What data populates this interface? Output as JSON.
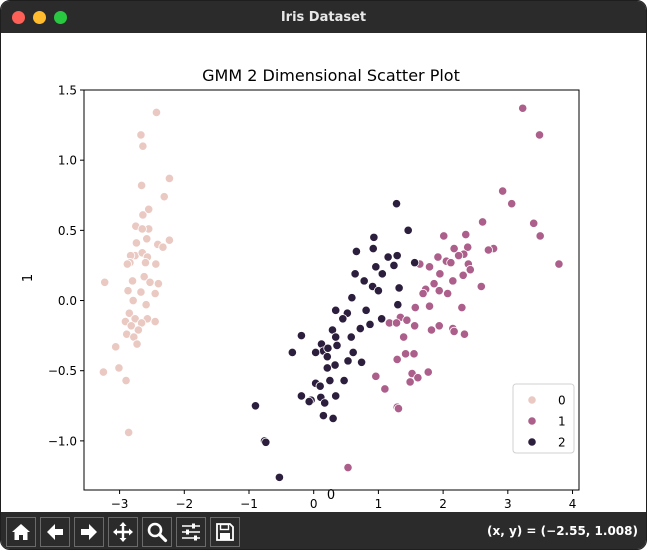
{
  "window": {
    "title": "Iris Dataset"
  },
  "toolbar": {
    "buttons": [
      {
        "name": "home-button",
        "icon": "home-icon",
        "tooltip": "Home"
      },
      {
        "name": "back-button",
        "icon": "arrow-left-icon",
        "tooltip": "Back"
      },
      {
        "name": "forward-button",
        "icon": "arrow-right-icon",
        "tooltip": "Forward"
      },
      {
        "name": "pan-button",
        "icon": "move-icon",
        "tooltip": "Pan"
      },
      {
        "name": "zoom-button",
        "icon": "magnifier-icon",
        "tooltip": "Zoom"
      },
      {
        "name": "configure-subplots-button",
        "icon": "sliders-icon",
        "tooltip": "Configure subplots"
      },
      {
        "name": "save-button",
        "icon": "floppy-disk-icon",
        "tooltip": "Save"
      }
    ],
    "coords": "(x, y) = (−2.55, 1.008)"
  },
  "chart_data": {
    "type": "scatter",
    "title": "GMM 2 Dimensional Scatter Plot",
    "xlabel": "0",
    "ylabel": "1",
    "xlim": [
      -3.55,
      4.1
    ],
    "ylim": [
      -1.35,
      1.5
    ],
    "xticks": [
      -3,
      -2,
      -1,
      0,
      1,
      2,
      3,
      4
    ],
    "yticks": [
      -1.0,
      -0.5,
      0.0,
      0.5,
      1.0,
      1.5
    ],
    "xtick_labels": [
      "−3",
      "−2",
      "−1",
      "0",
      "1",
      "2",
      "3",
      "4"
    ],
    "ytick_labels": [
      "−1.0",
      "−0.5",
      "0.0",
      "0.5",
      "1.0",
      "1.5"
    ],
    "grid": false,
    "legend": {
      "placement": "bottom-right",
      "entries": [
        "0",
        "1",
        "2"
      ]
    },
    "series": [
      {
        "name": "0",
        "color": "#ebc9c3",
        "points": [
          [
            -2.43,
            1.34
          ],
          [
            -2.67,
            1.18
          ],
          [
            -2.64,
            1.1
          ],
          [
            -2.23,
            0.87
          ],
          [
            -2.66,
            0.82
          ],
          [
            -2.31,
            0.74
          ],
          [
            -2.64,
            0.61
          ],
          [
            -2.55,
            0.65
          ],
          [
            -2.75,
            0.53
          ],
          [
            -2.55,
            0.51
          ],
          [
            -2.65,
            0.51
          ],
          [
            -2.58,
            0.44
          ],
          [
            -2.74,
            0.41
          ],
          [
            -2.23,
            0.43
          ],
          [
            -2.41,
            0.4
          ],
          [
            -2.33,
            0.38
          ],
          [
            -2.76,
            0.32
          ],
          [
            -2.83,
            0.32
          ],
          [
            -2.65,
            0.34
          ],
          [
            -2.57,
            0.31
          ],
          [
            -2.84,
            0.27
          ],
          [
            -2.88,
            0.26
          ],
          [
            -2.6,
            0.27
          ],
          [
            -2.44,
            0.26
          ],
          [
            -3.23,
            0.13
          ],
          [
            -2.62,
            0.17
          ],
          [
            -2.8,
            0.14
          ],
          [
            -2.53,
            0.13
          ],
          [
            -2.4,
            0.12
          ],
          [
            -2.87,
            0.07
          ],
          [
            -2.67,
            0.06
          ],
          [
            -2.45,
            0.05
          ],
          [
            -2.59,
            -0.03
          ],
          [
            -2.79,
            0.0
          ],
          [
            -2.85,
            -0.09
          ],
          [
            -2.76,
            -0.13
          ],
          [
            -2.57,
            -0.13
          ],
          [
            -2.45,
            -0.15
          ],
          [
            -2.91,
            -0.15
          ],
          [
            -2.66,
            -0.16
          ],
          [
            -2.82,
            -0.18
          ],
          [
            -2.71,
            -0.21
          ],
          [
            -2.89,
            -0.24
          ],
          [
            -2.78,
            -0.26
          ],
          [
            -2.73,
            -0.31
          ],
          [
            -3.06,
            -0.33
          ],
          [
            -3.01,
            -0.48
          ],
          [
            -3.25,
            -0.51
          ],
          [
            -2.9,
            -0.57
          ],
          [
            -2.86,
            -0.94
          ]
        ]
      },
      {
        "name": "1",
        "color": "#ad5f8b",
        "points": [
          [
            3.23,
            1.37
          ],
          [
            3.49,
            1.18
          ],
          [
            2.92,
            0.78
          ],
          [
            3.06,
            0.69
          ],
          [
            2.35,
            0.47
          ],
          [
            2.61,
            0.56
          ],
          [
            3.4,
            0.55
          ],
          [
            3.5,
            0.46
          ],
          [
            2.01,
            0.46
          ],
          [
            2.38,
            0.38
          ],
          [
            2.17,
            0.37
          ],
          [
            2.78,
            0.37
          ],
          [
            2.7,
            0.36
          ],
          [
            2.32,
            0.33
          ],
          [
            2.24,
            0.32
          ],
          [
            1.92,
            0.31
          ],
          [
            2.05,
            0.28
          ],
          [
            3.79,
            0.26
          ],
          [
            2.12,
            0.27
          ],
          [
            2.39,
            0.26
          ],
          [
            1.64,
            0.26
          ],
          [
            1.79,
            0.24
          ],
          [
            2.42,
            0.22
          ],
          [
            1.95,
            0.19
          ],
          [
            2.31,
            0.18
          ],
          [
            2.15,
            0.14
          ],
          [
            1.86,
            0.12
          ],
          [
            2.59,
            0.1
          ],
          [
            1.94,
            0.07
          ],
          [
            1.73,
            0.08
          ],
          [
            2.07,
            0.05
          ],
          [
            1.69,
            0.05
          ],
          [
            1.79,
            -0.04
          ],
          [
            2.29,
            -0.05
          ],
          [
            1.57,
            -0.05
          ],
          [
            1.17,
            -0.16
          ],
          [
            1.34,
            -0.12
          ],
          [
            1.44,
            -0.14
          ],
          [
            1.28,
            -0.16
          ],
          [
            1.56,
            -0.18
          ],
          [
            1.94,
            -0.18
          ],
          [
            2.15,
            -0.2
          ],
          [
            1.82,
            -0.21
          ],
          [
            2.33,
            -0.24
          ],
          [
            2.17,
            -0.22
          ],
          [
            1.39,
            -0.26
          ],
          [
            1.42,
            -0.38
          ],
          [
            1.55,
            -0.38
          ],
          [
            1.29,
            -0.42
          ],
          [
            1.52,
            -0.52
          ],
          [
            1.77,
            -0.51
          ],
          [
            1.49,
            -0.58
          ],
          [
            1.61,
            -0.55
          ],
          [
            0.96,
            -0.54
          ],
          [
            1.1,
            -0.63
          ],
          [
            1.29,
            -0.76
          ],
          [
            1.31,
            -0.77
          ],
          [
            0.53,
            -1.19
          ]
        ]
      },
      {
        "name": "2",
        "color": "#2c1e3d",
        "points": [
          [
            1.28,
            0.69
          ],
          [
            1.46,
            0.5
          ],
          [
            0.93,
            0.45
          ],
          [
            1.29,
            0.32
          ],
          [
            0.92,
            0.37
          ],
          [
            1.15,
            0.31
          ],
          [
            0.66,
            0.35
          ],
          [
            1.56,
            0.27
          ],
          [
            0.96,
            0.24
          ],
          [
            1.24,
            0.25
          ],
          [
            0.64,
            0.19
          ],
          [
            1.06,
            0.19
          ],
          [
            0.78,
            0.14
          ],
          [
            0.91,
            0.1
          ],
          [
            1.32,
            0.09
          ],
          [
            1.0,
            0.07
          ],
          [
            0.59,
            0.02
          ],
          [
            0.34,
            -0.07
          ],
          [
            0.81,
            -0.07
          ],
          [
            1.3,
            -0.03
          ],
          [
            0.52,
            -0.09
          ],
          [
            1.05,
            -0.13
          ],
          [
            0.45,
            -0.13
          ],
          [
            0.87,
            -0.17
          ],
          [
            0.72,
            -0.2
          ],
          [
            -0.19,
            -0.25
          ],
          [
            0.29,
            -0.21
          ],
          [
            0.58,
            -0.26
          ],
          [
            0.34,
            -0.26
          ],
          [
            0.12,
            -0.31
          ],
          [
            0.15,
            -0.36
          ],
          [
            0.36,
            -0.32
          ],
          [
            0.22,
            -0.34
          ],
          [
            0.03,
            -0.37
          ],
          [
            0.21,
            -0.4
          ],
          [
            0.53,
            -0.43
          ],
          [
            0.61,
            -0.37
          ],
          [
            -0.33,
            -0.37
          ],
          [
            0.74,
            -0.44
          ],
          [
            0.33,
            -0.46
          ],
          [
            0.21,
            -0.48
          ],
          [
            0.03,
            -0.59
          ],
          [
            0.25,
            -0.57
          ],
          [
            0.47,
            -0.57
          ],
          [
            0.1,
            -0.61
          ],
          [
            -0.19,
            -0.68
          ],
          [
            0.11,
            -0.69
          ],
          [
            0.34,
            -0.68
          ],
          [
            -0.04,
            -0.71
          ],
          [
            -0.07,
            -0.72
          ],
          [
            0.17,
            -0.73
          ],
          [
            0.15,
            -0.82
          ],
          [
            0.3,
            -0.84
          ],
          [
            -0.9,
            -0.75
          ],
          [
            -0.76,
            -1.0
          ],
          [
            -0.74,
            -1.01
          ],
          [
            -0.53,
            -1.26
          ]
        ]
      }
    ]
  }
}
